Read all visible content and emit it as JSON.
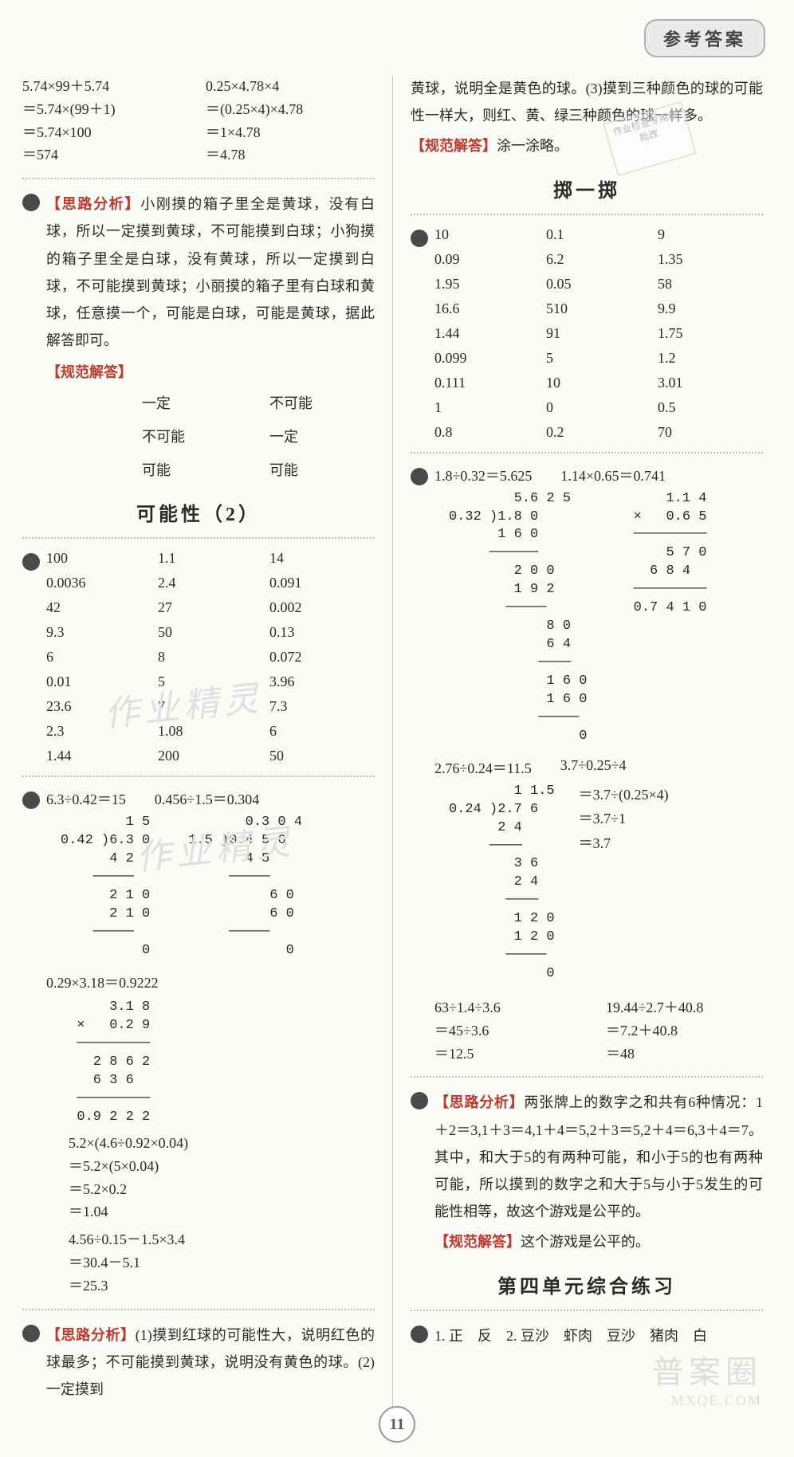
{
  "header": {
    "tab": "参考答案"
  },
  "page_number": "11",
  "watermarks": {
    "wm1": "作业精灵",
    "wm2": "作业精灵",
    "wm_br": "普案圈",
    "wm_url": "MXQE.COM",
    "stamp1": "作业检查专用章",
    "stamp2": "批改"
  },
  "left": {
    "eq1": {
      "c1": [
        "5.74×99＋5.74",
        "＝5.74×(99＋1)",
        "＝5.74×100",
        "＝574"
      ],
      "c2": [
        "0.25×4.78×4",
        "＝(0.25×4)×4.78",
        "＝1×4.78",
        "＝4.78"
      ]
    },
    "analysis1_label": "【思路分析】",
    "analysis1": "小刚摸的箱子里全是黄球，没有白球，所以一定摸到黄球，不可能摸到白球；小狗摸的箱子里全是白球，没有黄球，所以一定摸到白球，不可能摸到黄球；小丽摸的箱子里有白球和黄球，任意摸一个，可能是白球，可能是黄球，据此解答即可。",
    "std1_label": "【规范解答】",
    "cert": {
      "r1c1": "一定",
      "r1c2": "不可能",
      "r2c1": "不可能",
      "r2c2": "一定",
      "r3c1": "可能",
      "r3c2": "可能"
    },
    "title2": "可能性（2）",
    "grid2": [
      [
        "100",
        "1.1",
        "14"
      ],
      [
        "0.0036",
        "2.4",
        "0.091"
      ],
      [
        "42",
        "27",
        "0.002"
      ],
      [
        "9.3",
        "50",
        "0.13"
      ],
      [
        "6",
        "8",
        "0.072"
      ],
      [
        "0.01",
        "5",
        "3.96"
      ],
      [
        "23.6",
        "7",
        "7.3"
      ],
      [
        "2.3",
        "1.08",
        "6"
      ],
      [
        "1.44",
        "200",
        "50"
      ]
    ],
    "work1": {
      "h1": "6.3÷0.42＝15",
      "h2": "0.456÷1.5＝0.304",
      "ld1": "        1 5\n0.42 )6.3 0\n      4 2\n    ─────\n      2 1 0\n      2 1 0\n    ─────\n          0",
      "ld2": "       0.3 0 4\n1.5 )0.4 5 6\n       4 5\n     ─────\n          6 0\n          6 0\n     ─────\n            0"
    },
    "work2": {
      "h": "0.29×3.18＝0.9222",
      "ld": "      3.1 8\n  ×   0.2 9\n  ─────────\n    2 8 6 2\n    6 3 6\n  ─────────\n  0.9 2 2 2"
    },
    "work3": {
      "h": "5.2×(4.6÷0.92×0.04)",
      "l1": "＝5.2×(5×0.04)",
      "l2": "＝5.2×0.2",
      "l3": "＝1.04"
    },
    "work4": {
      "h": "4.56÷0.15－1.5×3.4",
      "l1": "＝30.4－5.1",
      "l2": "＝25.3"
    },
    "analysis2_label": "【思路分析】",
    "analysis2": "(1)摸到红球的可能性大，说明红色的球最多；不可能摸到黄球，说明没有黄色的球。(2)一定摸到"
  },
  "right": {
    "cont": "黄球，说明全是黄色的球。(3)摸到三种颜色的球的可能性一样大，则红、黄、绿三种颜色的球一样多。",
    "std_r_label": "【规范解答】",
    "std_r": "涂一涂略。",
    "title1": "掷一掷",
    "grid1": [
      [
        "10",
        "0.1",
        "9"
      ],
      [
        "0.09",
        "6.2",
        "1.35"
      ],
      [
        "1.95",
        "0.05",
        "58"
      ],
      [
        "16.6",
        "510",
        "9.9"
      ],
      [
        "1.44",
        "91",
        "1.75"
      ],
      [
        "0.099",
        "5",
        "1.2"
      ],
      [
        "0.111",
        "10",
        "3.01"
      ],
      [
        "1",
        "0",
        "0.5"
      ],
      [
        "0.8",
        "0.2",
        "70"
      ]
    ],
    "pair1": {
      "h1": "1.8÷0.32＝5.625",
      "h2": "1.14×0.65＝0.741",
      "ld1": "        5.6 2 5\n0.32 )1.8 0\n      1 6 0\n     ──────\n        2 0 0\n        1 9 2\n       ─────\n            8 0\n            6 4\n           ────\n            1 6 0\n            1 6 0\n           ─────\n                0",
      "ld2": "     1.1 4\n ×   0.6 5\n ─────────\n     5 7 0\n   6 8 4\n ─────────\n 0.7 4 1 0"
    },
    "pair2": {
      "h1": "2.76÷0.24＝11.5",
      "h2": "3.7÷0.25÷4",
      "ld1": "        1 1.5\n0.24 )2.7 6\n      2 4\n     ────\n        3 6\n        2 4\n       ────\n        1 2 0\n        1 2 0\n       ─────\n            0",
      "s2": [
        "＝3.7÷(0.25×4)",
        "＝3.7÷1",
        "＝3.7"
      ]
    },
    "pair3": {
      "c1": [
        "63÷1.4÷3.6",
        "＝45÷3.6",
        "＝12.5"
      ],
      "c2": [
        "19.44÷2.7＋40.8",
        "＝7.2＋40.8",
        "＝48"
      ]
    },
    "analysis3_label": "【思路分析】",
    "analysis3": "两张牌上的数字之和共有6种情况：1＋2＝3,1＋3＝4,1＋4＝5,2＋3＝5,2＋4＝6,3＋4＝7。其中，和大于5的有两种可能，和小于5的也有两种可能，所以摸到的数字之和大于5与小于5发生的可能性相等，故这个游戏是公平的。",
    "std3_label": "【规范解答】",
    "std3": "这个游戏是公平的。",
    "title2": "第四单元综合练习",
    "last": "1. 正　反　2. 豆沙　虾肉　豆沙　猪肉　白"
  }
}
